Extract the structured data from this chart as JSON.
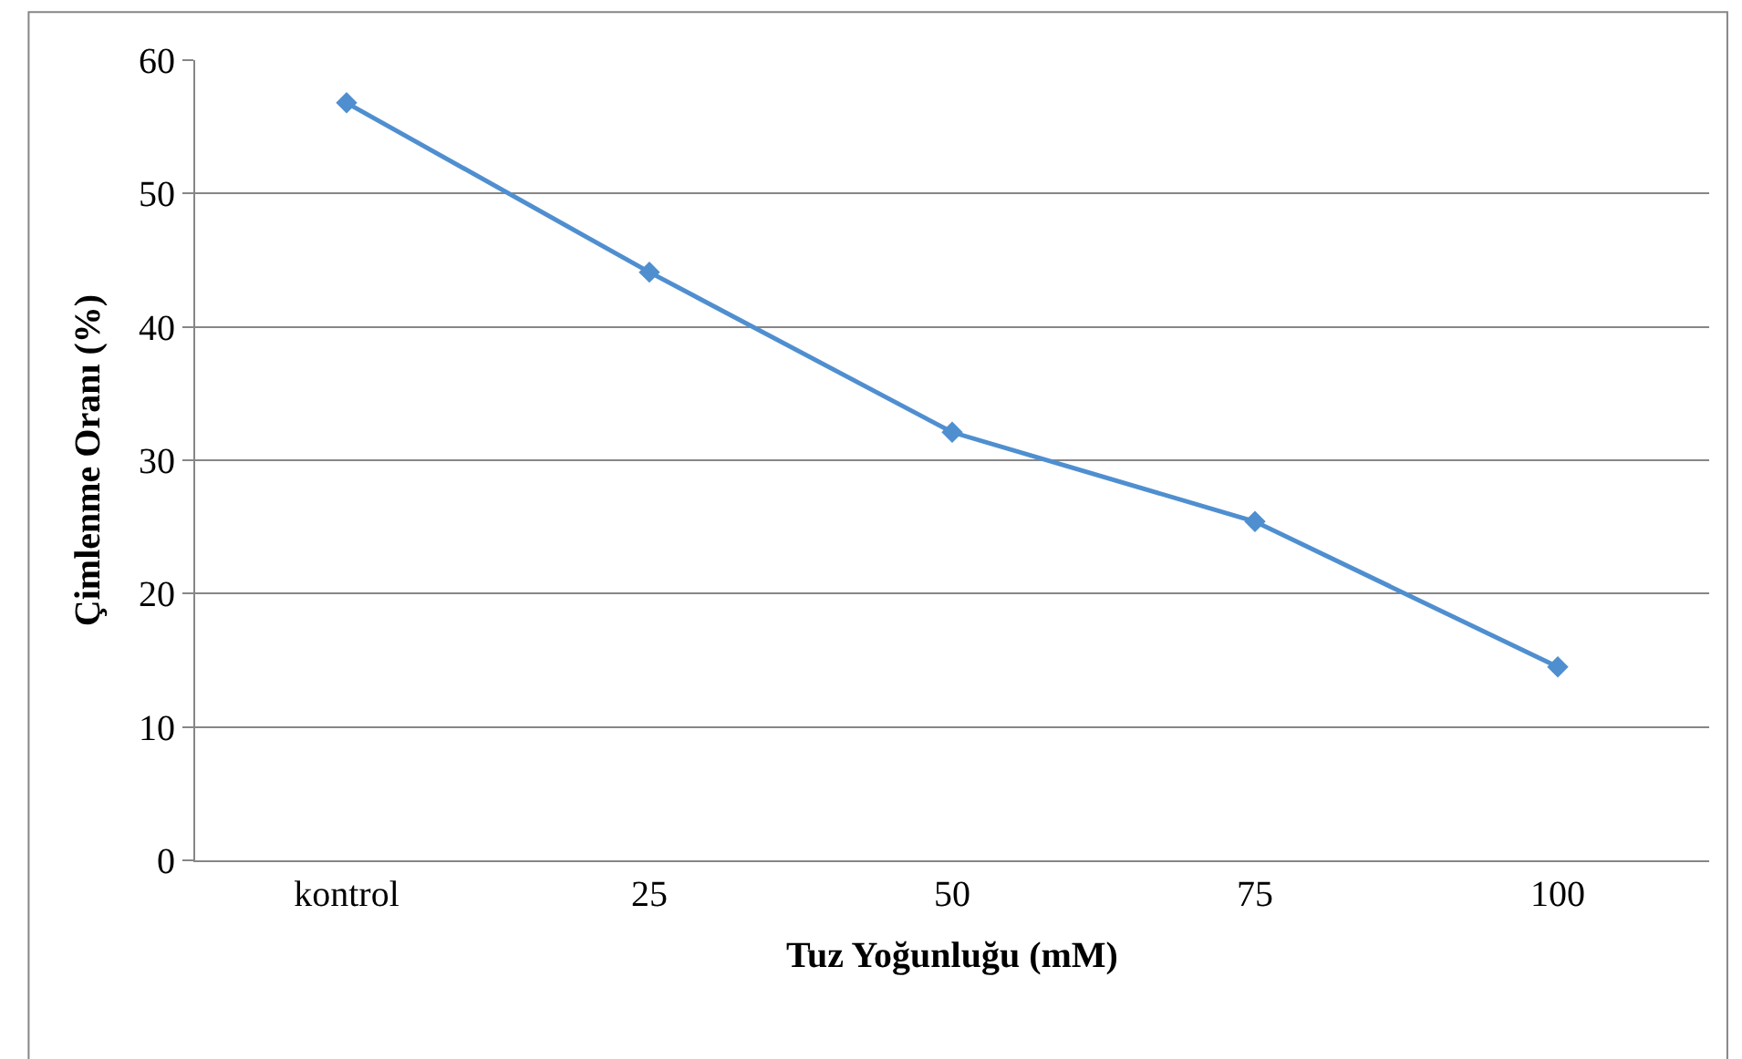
{
  "chart_data": {
    "type": "line",
    "xlabel": "Tuz Yoğunluğu (mM)",
    "ylabel": "Çimlenme Oranı (%)",
    "categories": [
      "kontrol",
      "25",
      "50",
      "75",
      "100"
    ],
    "series": [
      {
        "color": "#4f8fd0",
        "values": [
          56.8,
          44.1,
          32.1,
          25.4,
          14.5
        ]
      }
    ],
    "ylim": [
      0,
      60
    ],
    "yticks": [
      0,
      10,
      20,
      30,
      40,
      50,
      60
    ],
    "grid": "y",
    "legend": false,
    "marker": "diamond",
    "line_style": "solid"
  }
}
